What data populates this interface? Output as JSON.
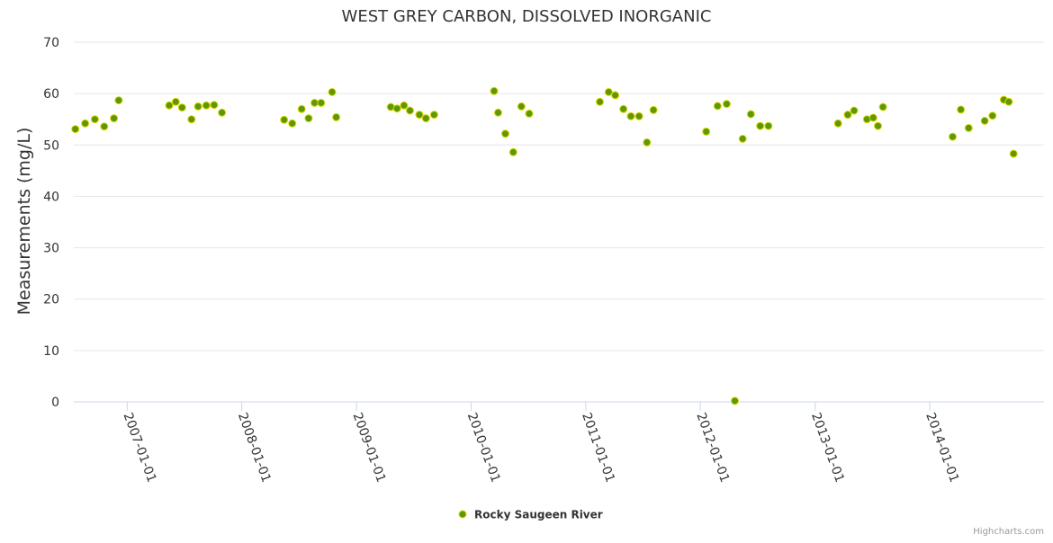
{
  "chart_data": {
    "type": "scatter",
    "title": "WEST GREY CARBON, DISSOLVED INORGANIC",
    "xlabel": "",
    "ylabel": "Measurements (mg/L)",
    "ylim": [
      0,
      70
    ],
    "xlim": [
      "2006-07-15",
      "2014-12-31"
    ],
    "y_ticks": [
      "0",
      "10",
      "20",
      "30",
      "40",
      "50",
      "60",
      "70"
    ],
    "x_ticks": [
      "2007-01-01",
      "2008-01-01",
      "2009-01-01",
      "2010-01-01",
      "2011-01-01",
      "2012-01-01",
      "2013-01-01",
      "2014-01-01"
    ],
    "grid": true,
    "legend_position": "bottom-center",
    "credits": "Highcharts.com",
    "series": [
      {
        "name": "Rocky Saugeen River",
        "color": "#5a9a08",
        "marker_stroke": "#e8d400",
        "points": [
          [
            "2006-07-20",
            53.1
          ],
          [
            "2006-08-20",
            54.2
          ],
          [
            "2006-09-20",
            55.0
          ],
          [
            "2006-10-20",
            53.6
          ],
          [
            "2006-11-20",
            55.2
          ],
          [
            "2006-12-05",
            58.7
          ],
          [
            "2007-05-15",
            57.7
          ],
          [
            "2007-06-05",
            58.4
          ],
          [
            "2007-06-25",
            57.3
          ],
          [
            "2007-07-25",
            55.0
          ],
          [
            "2007-08-15",
            57.5
          ],
          [
            "2007-09-10",
            57.7
          ],
          [
            "2007-10-05",
            57.8
          ],
          [
            "2007-10-30",
            56.3
          ],
          [
            "2008-05-15",
            54.9
          ],
          [
            "2008-06-10",
            54.2
          ],
          [
            "2008-07-10",
            57.0
          ],
          [
            "2008-08-01",
            55.2
          ],
          [
            "2008-08-20",
            58.2
          ],
          [
            "2008-09-10",
            58.2
          ],
          [
            "2008-10-15",
            60.3
          ],
          [
            "2008-10-28",
            55.4
          ],
          [
            "2009-04-20",
            57.4
          ],
          [
            "2009-05-10",
            57.1
          ],
          [
            "2009-06-01",
            57.7
          ],
          [
            "2009-06-20",
            56.7
          ],
          [
            "2009-07-20",
            55.9
          ],
          [
            "2009-08-10",
            55.2
          ],
          [
            "2009-09-05",
            55.9
          ],
          [
            "2010-03-15",
            60.5
          ],
          [
            "2010-03-28",
            56.3
          ],
          [
            "2010-04-20",
            52.2
          ],
          [
            "2010-05-15",
            48.6
          ],
          [
            "2010-06-10",
            57.5
          ],
          [
            "2010-07-05",
            56.1
          ],
          [
            "2011-02-15",
            58.4
          ],
          [
            "2011-03-15",
            60.3
          ],
          [
            "2011-04-05",
            59.7
          ],
          [
            "2011-05-01",
            57.0
          ],
          [
            "2011-05-25",
            55.6
          ],
          [
            "2011-06-20",
            55.6
          ],
          [
            "2011-07-15",
            50.5
          ],
          [
            "2011-08-05",
            56.8
          ],
          [
            "2012-01-20",
            52.6
          ],
          [
            "2012-02-25",
            57.6
          ],
          [
            "2012-03-25",
            58.0
          ],
          [
            "2012-04-20",
            0.2
          ],
          [
            "2012-05-15",
            51.2
          ],
          [
            "2012-06-10",
            56.0
          ],
          [
            "2012-07-10",
            53.7
          ],
          [
            "2012-08-05",
            53.7
          ],
          [
            "2013-03-15",
            54.2
          ],
          [
            "2013-04-15",
            55.9
          ],
          [
            "2013-05-05",
            56.7
          ],
          [
            "2013-06-15",
            55.0
          ],
          [
            "2013-07-05",
            55.3
          ],
          [
            "2013-07-20",
            53.7
          ],
          [
            "2013-08-05",
            57.4
          ],
          [
            "2014-03-15",
            51.6
          ],
          [
            "2014-04-10",
            56.9
          ],
          [
            "2014-05-05",
            53.3
          ],
          [
            "2014-06-25",
            54.7
          ],
          [
            "2014-07-20",
            55.7
          ],
          [
            "2014-08-25",
            58.8
          ],
          [
            "2014-09-10",
            58.4
          ],
          [
            "2014-09-25",
            48.3
          ]
        ]
      }
    ]
  }
}
